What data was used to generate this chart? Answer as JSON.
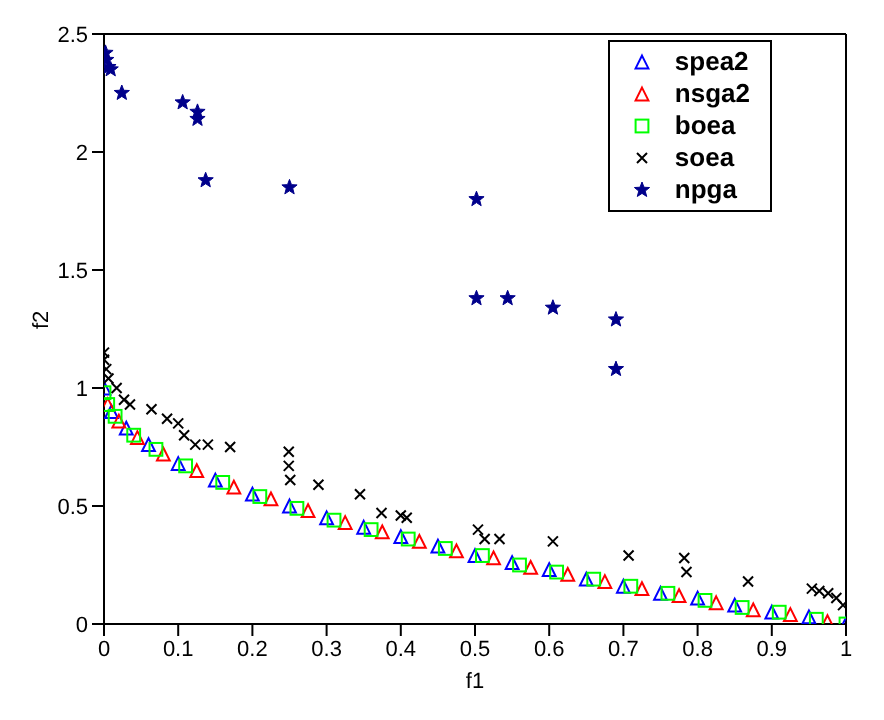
{
  "chart_data": {
    "type": "scatter",
    "xlabel": "f1",
    "ylabel": "f2",
    "xlim": [
      0,
      1
    ],
    "xticks": [
      0,
      0.1,
      0.2,
      0.3,
      0.4,
      0.5,
      0.6,
      0.7,
      0.8,
      0.9,
      1
    ],
    "ylim": [
      0,
      2.5
    ],
    "yticks": [
      0,
      0.5,
      1,
      1.5,
      2,
      2.5
    ],
    "grid": false,
    "legend": "top right",
    "series": [
      {
        "name": "spea2",
        "color": "#0000ff",
        "marker": "triangle",
        "x": [
          0,
          0.01,
          0.03,
          0.06,
          0.1,
          0.15,
          0.2,
          0.25,
          0.3,
          0.35,
          0.4,
          0.45,
          0.5,
          0.55,
          0.6,
          0.65,
          0.7,
          0.75,
          0.8,
          0.85,
          0.9,
          0.95,
          1
        ],
        "values": [
          1,
          0.9,
          0.83,
          0.76,
          0.68,
          0.61,
          0.55,
          0.5,
          0.45,
          0.41,
          0.37,
          0.33,
          0.29,
          0.26,
          0.23,
          0.19,
          0.16,
          0.13,
          0.11,
          0.08,
          0.05,
          0.03,
          0
        ]
      },
      {
        "name": "nsga2",
        "color": "#ff0000",
        "marker": "triangle",
        "x": [
          0.005,
          0.02,
          0.045,
          0.08,
          0.125,
          0.175,
          0.225,
          0.275,
          0.325,
          0.375,
          0.425,
          0.475,
          0.525,
          0.575,
          0.625,
          0.675,
          0.725,
          0.775,
          0.825,
          0.875,
          0.925,
          0.975
        ],
        "values": [
          0.93,
          0.86,
          0.79,
          0.72,
          0.65,
          0.58,
          0.53,
          0.48,
          0.43,
          0.39,
          0.35,
          0.31,
          0.28,
          0.24,
          0.21,
          0.18,
          0.15,
          0.12,
          0.09,
          0.06,
          0.04,
          0.01
        ]
      },
      {
        "name": "boea",
        "color": "#00ff00",
        "marker": "square",
        "x": [
          0,
          0.005,
          0.015,
          0.04,
          0.07,
          0.11,
          0.16,
          0.21,
          0.26,
          0.31,
          0.36,
          0.41,
          0.46,
          0.51,
          0.56,
          0.61,
          0.66,
          0.71,
          0.76,
          0.81,
          0.86,
          0.91,
          0.96,
          1
        ],
        "values": [
          0.98,
          0.93,
          0.88,
          0.8,
          0.74,
          0.67,
          0.6,
          0.54,
          0.49,
          0.44,
          0.4,
          0.36,
          0.32,
          0.29,
          0.25,
          0.22,
          0.19,
          0.16,
          0.13,
          0.1,
          0.07,
          0.05,
          0.02,
          0
        ]
      },
      {
        "name": "soea",
        "color": "#000000",
        "marker": "cross",
        "x": [
          0,
          0,
          0.003,
          0.006,
          0.017,
          0.027,
          0.035,
          0.064,
          0.085,
          0.1,
          0.108,
          0.123,
          0.14,
          0.17,
          0.249,
          0.249,
          0.251,
          0.289,
          0.345,
          0.374,
          0.4,
          0.408,
          0.504,
          0.513,
          0.533,
          0.605,
          0.707,
          0.782,
          0.785,
          0.868,
          0.954,
          0.964,
          0.976,
          0.987,
          0.996
        ],
        "values": [
          1.15,
          1.12,
          1.08,
          1.04,
          1,
          0.95,
          0.93,
          0.91,
          0.87,
          0.85,
          0.8,
          0.76,
          0.76,
          0.75,
          0.73,
          0.67,
          0.61,
          0.59,
          0.55,
          0.47,
          0.46,
          0.45,
          0.4,
          0.36,
          0.36,
          0.35,
          0.29,
          0.28,
          0.22,
          0.18,
          0.15,
          0.14,
          0.13,
          0.11,
          0.08
        ]
      },
      {
        "name": "npga",
        "color": "#00008b",
        "marker": "star",
        "x": [
          0.002,
          0.003,
          0.006,
          0.009,
          0.024,
          0.106,
          0.126,
          0.126,
          0.137,
          0.25,
          0.502,
          0.502,
          0.544,
          0.605,
          0.69,
          0.69
        ],
        "values": [
          2.42,
          2.39,
          2.36,
          2.35,
          2.25,
          2.21,
          2.17,
          2.14,
          1.88,
          1.85,
          1.8,
          1.38,
          1.38,
          1.34,
          1.29,
          1.08
        ]
      }
    ]
  }
}
